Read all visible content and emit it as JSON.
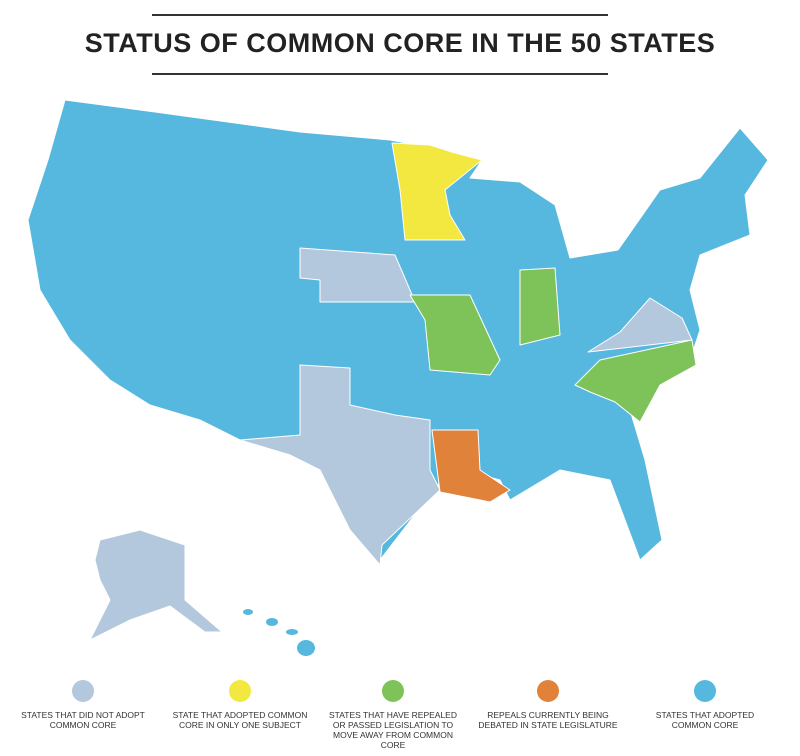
{
  "title": "STATUS OF COMMON CORE IN THE 50 STATES",
  "legend": [
    {
      "label": "STATES THAT DID NOT ADOPT COMMON CORE",
      "color": "#b3c8dc"
    },
    {
      "label": "STATE THAT ADOPTED COMMON CORE IN ONLY ONE SUBJECT",
      "color": "#f2e840"
    },
    {
      "label": "STATES THAT HAVE REPEALED OR PASSED LEGISLATION TO MOVE AWAY FROM COMMON CORE",
      "color": "#7dc35a"
    },
    {
      "label": "REPEALS CURRENTLY BEING DEBATED IN STATE LEGISLATURE",
      "color": "#e0823a"
    },
    {
      "label": "STATES THAT ADOPTED COMMON CORE",
      "color": "#56b8df"
    }
  ]
}
